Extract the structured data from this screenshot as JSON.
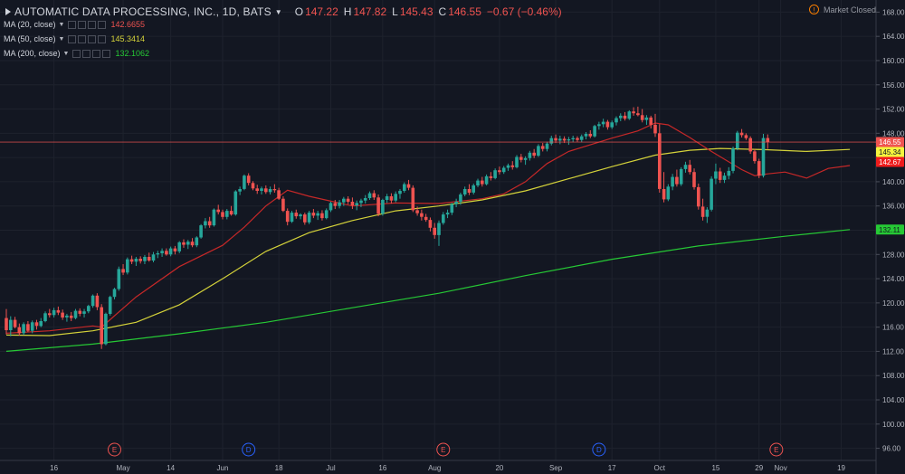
{
  "header": {
    "symbol": "AUTOMATIC DATA PROCESSING, INC., 1D, BATS",
    "open_label": "O",
    "open": "147.22",
    "high_label": "H",
    "high": "147.82",
    "low_label": "L",
    "low": "145.43",
    "close_label": "C",
    "close": "146.55",
    "change": "−0.67 (−0.46%)",
    "market_status": "Market Closed"
  },
  "studies": [
    {
      "label": "MA (20, close)",
      "value": "142.6655",
      "color": "#ef5350"
    },
    {
      "label": "MA (50, close)",
      "value": "145.3414",
      "color": "#d4d23a"
    },
    {
      "label": "MA (200, close)",
      "value": "132.1062",
      "color": "#26c935"
    }
  ],
  "colors": {
    "up": "#26a69a",
    "down": "#ef5350",
    "background": "#131722"
  },
  "chart_data": {
    "type": "candlestick",
    "ylim": [
      94,
      170
    ],
    "y_ticks": [
      "168.00",
      "164.00",
      "160.00",
      "156.00",
      "152.00",
      "148.00",
      "144.00",
      "140.00",
      "136.00",
      "132.00",
      "128.00",
      "124.00",
      "120.00",
      "116.00",
      "112.00",
      "108.00",
      "104.00",
      "100.00",
      "96.00"
    ],
    "x_ticks": [
      {
        "label": "16",
        "i": 11
      },
      {
        "label": "May",
        "i": 27
      },
      {
        "label": "14",
        "i": 38
      },
      {
        "label": "Jun",
        "i": 50
      },
      {
        "label": "18",
        "i": 63
      },
      {
        "label": "Jul",
        "i": 75
      },
      {
        "label": "16",
        "i": 87
      },
      {
        "label": "Aug",
        "i": 99
      },
      {
        "label": "20",
        "i": 114
      },
      {
        "label": "Sep",
        "i": 127
      },
      {
        "label": "17",
        "i": 140
      },
      {
        "label": "Oct",
        "i": 151
      },
      {
        "label": "15",
        "i": 164
      },
      {
        "label": "29",
        "i": 174
      },
      {
        "label": "Nov",
        "i": 179
      },
      {
        "label": "19",
        "i": 193
      }
    ],
    "event_markers": [
      {
        "label": "E",
        "i": 25,
        "color": "#ef5350"
      },
      {
        "label": "D",
        "i": 56,
        "color": "#2962ff"
      },
      {
        "label": "E",
        "i": 101,
        "color": "#ef5350"
      },
      {
        "label": "D",
        "i": 137,
        "color": "#2962ff"
      },
      {
        "label": "E",
        "i": 178,
        "color": "#ef5350"
      }
    ],
    "price_labels": [
      {
        "value": 146.55,
        "text": "146.55",
        "bg": "#ef5350",
        "fg": "#ffffff"
      },
      {
        "value": 145.34,
        "text": "145.34",
        "bg": "#f5f53d",
        "fg": "#131722"
      },
      {
        "value": 142.67,
        "text": "142.67",
        "bg": "#ef1c1c",
        "fg": "#ffffff"
      },
      {
        "value": 132.11,
        "text": "132.11",
        "bg": "#26c935",
        "fg": "#131722"
      }
    ],
    "last_price": 146.55,
    "candles": [
      [
        117.5,
        119.0,
        114.8,
        115.5
      ],
      [
        115.5,
        117.8,
        114.5,
        117.2
      ],
      [
        117.2,
        117.7,
        115.8,
        116.0
      ],
      [
        116.0,
        116.6,
        114.6,
        115.0
      ],
      [
        115.0,
        116.8,
        114.7,
        116.5
      ],
      [
        116.5,
        117.0,
        115.2,
        115.4
      ],
      [
        115.4,
        117.1,
        115.0,
        116.8
      ],
      [
        116.8,
        117.2,
        115.6,
        116.2
      ],
      [
        116.2,
        117.5,
        116.0,
        117.0
      ],
      [
        117.0,
        118.6,
        116.8,
        118.3
      ],
      [
        118.3,
        119.0,
        117.6,
        118.0
      ],
      [
        118.0,
        119.2,
        117.6,
        118.8
      ],
      [
        118.8,
        119.4,
        118.0,
        118.4
      ],
      [
        118.4,
        118.9,
        117.2,
        117.6
      ],
      [
        117.6,
        118.2,
        116.9,
        117.9
      ],
      [
        117.9,
        118.5,
        117.0,
        117.5
      ],
      [
        117.5,
        119.0,
        117.3,
        118.7
      ],
      [
        118.7,
        119.1,
        117.8,
        118.2
      ],
      [
        118.2,
        119.0,
        117.6,
        118.6
      ],
      [
        118.6,
        119.7,
        118.3,
        119.5
      ],
      [
        119.5,
        121.4,
        119.2,
        121.2
      ],
      [
        121.2,
        121.6,
        118.8,
        119.3
      ],
      [
        119.3,
        119.8,
        112.4,
        113.2
      ],
      [
        113.2,
        118.4,
        113.0,
        118.2
      ],
      [
        118.2,
        121.2,
        117.9,
        121.0
      ],
      [
        121.0,
        122.5,
        120.6,
        122.3
      ],
      [
        122.3,
        126.0,
        122.0,
        125.6
      ],
      [
        125.6,
        126.4,
        124.6,
        125.0
      ],
      [
        125.0,
        127.5,
        124.7,
        127.2
      ],
      [
        127.2,
        127.8,
        126.4,
        126.8
      ],
      [
        126.8,
        127.6,
        126.1,
        127.3
      ],
      [
        127.3,
        127.7,
        126.5,
        126.9
      ],
      [
        126.9,
        127.9,
        126.4,
        127.6
      ],
      [
        127.6,
        128.3,
        126.8,
        127.0
      ],
      [
        127.0,
        128.4,
        126.7,
        128.0
      ],
      [
        128.0,
        128.6,
        127.4,
        128.2
      ],
      [
        128.2,
        129.0,
        127.6,
        128.6
      ],
      [
        128.6,
        129.0,
        127.8,
        128.0
      ],
      [
        128.0,
        129.3,
        127.7,
        129.0
      ],
      [
        129.0,
        129.4,
        128.0,
        128.5
      ],
      [
        128.5,
        130.2,
        128.2,
        130.0
      ],
      [
        130.0,
        130.5,
        129.1,
        129.6
      ],
      [
        129.6,
        130.4,
        128.9,
        130.1
      ],
      [
        130.1,
        130.7,
        129.2,
        129.5
      ],
      [
        129.5,
        131.0,
        129.2,
        130.8
      ],
      [
        130.8,
        133.0,
        130.6,
        132.8
      ],
      [
        132.8,
        134.0,
        132.3,
        133.5
      ],
      [
        133.5,
        134.2,
        132.4,
        132.8
      ],
      [
        132.8,
        135.6,
        132.6,
        135.4
      ],
      [
        135.4,
        136.2,
        134.6,
        135.0
      ],
      [
        135.0,
        135.4,
        133.8,
        134.2
      ],
      [
        134.2,
        135.5,
        133.8,
        135.2
      ],
      [
        135.2,
        136.0,
        134.4,
        134.6
      ],
      [
        134.6,
        138.6,
        134.4,
        138.4
      ],
      [
        138.4,
        139.2,
        137.8,
        138.8
      ],
      [
        138.8,
        141.2,
        138.6,
        141.0
      ],
      [
        141.0,
        141.4,
        139.4,
        139.8
      ],
      [
        139.8,
        140.1,
        138.6,
        138.9
      ],
      [
        138.9,
        139.5,
        138.0,
        138.5
      ],
      [
        138.5,
        139.2,
        137.9,
        138.9
      ],
      [
        138.9,
        139.4,
        138.0,
        138.3
      ],
      [
        138.3,
        139.2,
        137.9,
        138.8
      ],
      [
        138.8,
        139.6,
        138.2,
        138.6
      ],
      [
        138.6,
        139.0,
        137.0,
        137.2
      ],
      [
        137.2,
        137.6,
        135.0,
        135.2
      ],
      [
        135.2,
        135.6,
        132.8,
        133.4
      ],
      [
        133.4,
        135.2,
        133.2,
        134.9
      ],
      [
        134.9,
        135.4,
        133.9,
        134.3
      ],
      [
        134.3,
        134.8,
        133.8,
        134.6
      ],
      [
        134.6,
        134.9,
        132.9,
        133.3
      ],
      [
        133.3,
        135.2,
        133.0,
        134.9
      ],
      [
        134.9,
        135.5,
        134.0,
        134.4
      ],
      [
        134.4,
        135.2,
        133.7,
        134.8
      ],
      [
        134.8,
        135.3,
        133.6,
        134.0
      ],
      [
        134.0,
        135.6,
        133.8,
        135.3
      ],
      [
        135.3,
        136.7,
        135.0,
        136.5
      ],
      [
        136.5,
        137.0,
        135.5,
        136.0
      ],
      [
        136.0,
        137.0,
        135.6,
        136.6
      ],
      [
        136.6,
        137.5,
        136.0,
        137.2
      ],
      [
        137.2,
        137.6,
        136.3,
        136.7
      ],
      [
        136.7,
        137.4,
        135.5,
        136.1
      ],
      [
        136.1,
        136.9,
        135.3,
        136.5
      ],
      [
        136.5,
        137.2,
        135.8,
        136.9
      ],
      [
        136.9,
        137.8,
        136.4,
        137.3
      ],
      [
        137.3,
        138.4,
        137.0,
        138.1
      ],
      [
        138.1,
        138.6,
        137.0,
        137.4
      ],
      [
        137.4,
        137.9,
        134.3,
        134.7
      ],
      [
        134.7,
        137.2,
        134.4,
        137.0
      ],
      [
        137.0,
        138.0,
        136.5,
        137.6
      ],
      [
        137.6,
        138.1,
        136.4,
        136.9
      ],
      [
        136.9,
        138.4,
        136.6,
        138.0
      ],
      [
        138.0,
        138.8,
        137.2,
        138.5
      ],
      [
        138.5,
        139.9,
        138.2,
        139.6
      ],
      [
        139.6,
        140.3,
        138.6,
        139.0
      ],
      [
        139.0,
        139.4,
        135.0,
        135.3
      ],
      [
        135.3,
        135.9,
        134.4,
        134.8
      ],
      [
        134.8,
        135.4,
        133.6,
        134.2
      ],
      [
        134.2,
        134.7,
        133.4,
        133.7
      ],
      [
        133.7,
        134.1,
        131.8,
        132.4
      ],
      [
        132.4,
        133.2,
        130.6,
        131.2
      ],
      [
        131.2,
        133.6,
        129.4,
        133.2
      ],
      [
        133.2,
        135.0,
        132.9,
        134.6
      ],
      [
        134.6,
        135.4,
        134.0,
        134.9
      ],
      [
        134.9,
        136.5,
        134.5,
        136.3
      ],
      [
        136.3,
        137.2,
        135.8,
        136.7
      ],
      [
        136.7,
        138.2,
        136.2,
        137.9
      ],
      [
        137.9,
        139.2,
        137.6,
        138.8
      ],
      [
        138.8,
        139.6,
        137.8,
        138.2
      ],
      [
        138.2,
        139.7,
        137.9,
        139.4
      ],
      [
        139.4,
        140.5,
        139.1,
        140.2
      ],
      [
        140.2,
        140.8,
        139.2,
        139.6
      ],
      [
        139.6,
        141.2,
        139.4,
        140.9
      ],
      [
        140.9,
        141.6,
        140.2,
        140.6
      ],
      [
        140.6,
        142.2,
        140.4,
        141.9
      ],
      [
        141.9,
        142.5,
        141.2,
        141.6
      ],
      [
        141.6,
        142.6,
        141.3,
        142.3
      ],
      [
        142.3,
        143.0,
        141.8,
        142.7
      ],
      [
        142.7,
        143.4,
        142.0,
        142.4
      ],
      [
        142.4,
        144.4,
        142.2,
        144.1
      ],
      [
        144.1,
        144.6,
        143.2,
        143.6
      ],
      [
        143.6,
        144.2,
        142.8,
        143.9
      ],
      [
        143.9,
        145.1,
        143.5,
        144.8
      ],
      [
        144.8,
        145.4,
        143.9,
        144.3
      ],
      [
        144.3,
        146.2,
        144.1,
        145.9
      ],
      [
        145.9,
        146.4,
        145.0,
        145.4
      ],
      [
        145.4,
        146.6,
        145.0,
        146.3
      ],
      [
        146.3,
        147.6,
        146.0,
        147.2
      ],
      [
        147.2,
        147.8,
        146.4,
        146.8
      ],
      [
        146.8,
        147.6,
        146.2,
        147.1
      ],
      [
        147.1,
        147.5,
        146.4,
        146.8
      ],
      [
        146.8,
        147.4,
        146.1,
        147.0
      ],
      [
        147.0,
        147.6,
        146.5,
        147.2
      ],
      [
        147.2,
        147.5,
        146.6,
        146.9
      ],
      [
        146.9,
        147.8,
        146.5,
        147.5
      ],
      [
        147.5,
        148.2,
        147.0,
        147.9
      ],
      [
        147.9,
        148.5,
        147.2,
        147.5
      ],
      [
        147.5,
        149.4,
        147.3,
        149.2
      ],
      [
        149.2,
        149.9,
        148.6,
        149.5
      ],
      [
        149.5,
        150.4,
        149.0,
        149.9
      ],
      [
        149.9,
        150.2,
        148.6,
        149.0
      ],
      [
        149.0,
        150.1,
        148.7,
        149.8
      ],
      [
        149.8,
        150.8,
        149.3,
        150.5
      ],
      [
        150.5,
        151.3,
        150.0,
        150.9
      ],
      [
        150.9,
        151.5,
        150.1,
        150.4
      ],
      [
        150.4,
        151.8,
        150.2,
        151.6
      ],
      [
        151.6,
        152.3,
        150.9,
        151.3
      ],
      [
        151.3,
        152.4,
        150.8,
        151.0
      ],
      [
        151.0,
        152.0,
        149.8,
        150.2
      ],
      [
        150.2,
        151.0,
        149.4,
        150.6
      ],
      [
        150.6,
        150.9,
        148.8,
        149.4
      ],
      [
        149.4,
        151.2,
        147.4,
        148.0
      ],
      [
        148.0,
        149.5,
        138.2,
        138.8
      ],
      [
        138.8,
        141.6,
        136.6,
        137.1
      ],
      [
        137.1,
        139.6,
        136.8,
        139.2
      ],
      [
        139.2,
        141.3,
        138.6,
        140.8
      ],
      [
        140.8,
        142.0,
        139.2,
        139.6
      ],
      [
        139.6,
        142.4,
        139.3,
        142.1
      ],
      [
        142.1,
        143.3,
        141.5,
        142.8
      ],
      [
        142.8,
        143.6,
        141.2,
        141.6
      ],
      [
        141.6,
        142.2,
        138.7,
        139.1
      ],
      [
        139.1,
        139.7,
        135.4,
        135.9
      ],
      [
        135.9,
        137.2,
        133.6,
        134.2
      ],
      [
        134.2,
        135.8,
        133.2,
        135.4
      ],
      [
        135.4,
        140.9,
        135.1,
        140.5
      ],
      [
        140.5,
        143.0,
        139.6,
        141.7
      ],
      [
        141.7,
        142.3,
        139.8,
        140.3
      ],
      [
        140.3,
        141.5,
        139.8,
        141.0
      ],
      [
        141.0,
        142.4,
        140.4,
        141.8
      ],
      [
        141.8,
        145.8,
        141.4,
        145.5
      ],
      [
        145.5,
        148.4,
        145.2,
        148.1
      ],
      [
        148.1,
        148.7,
        147.3,
        147.7
      ],
      [
        147.7,
        148.0,
        146.9,
        147.2
      ],
      [
        147.2,
        147.5,
        144.6,
        145.0
      ],
      [
        145.0,
        145.4,
        143.0,
        143.4
      ],
      [
        143.4,
        143.8,
        140.6,
        141.0
      ],
      [
        141.0,
        147.9,
        140.7,
        147.22
      ],
      [
        147.22,
        147.82,
        145.43,
        146.55
      ]
    ],
    "ma20": [
      [
        0,
        115.0
      ],
      [
        10,
        115.4
      ],
      [
        20,
        116.2
      ],
      [
        22,
        116.0
      ],
      [
        30,
        121.0
      ],
      [
        40,
        126.0
      ],
      [
        50,
        129.5
      ],
      [
        55,
        132.5
      ],
      [
        60,
        136.0
      ],
      [
        65,
        138.6
      ],
      [
        70,
        137.6
      ],
      [
        80,
        136.0
      ],
      [
        90,
        136.5
      ],
      [
        100,
        136.4
      ],
      [
        110,
        137.2
      ],
      [
        115,
        138.0
      ],
      [
        120,
        140.0
      ],
      [
        125,
        143.0
      ],
      [
        130,
        145.0
      ],
      [
        140,
        147.2
      ],
      [
        146,
        148.4
      ],
      [
        150,
        149.7
      ],
      [
        153,
        149.4
      ],
      [
        158,
        147.3
      ],
      [
        163,
        145.0
      ],
      [
        170,
        142.0
      ],
      [
        173,
        141.0
      ],
      [
        176,
        141.3
      ],
      [
        180,
        141.6
      ],
      [
        185,
        140.6
      ],
      [
        190,
        142.2
      ],
      [
        195,
        142.67
      ]
    ],
    "ma50": [
      [
        0,
        114.7
      ],
      [
        10,
        114.6
      ],
      [
        20,
        115.4
      ],
      [
        30,
        116.8
      ],
      [
        40,
        119.7
      ],
      [
        50,
        124.0
      ],
      [
        60,
        128.5
      ],
      [
        70,
        131.6
      ],
      [
        80,
        133.6
      ],
      [
        90,
        135.2
      ],
      [
        100,
        136.0
      ],
      [
        110,
        137.0
      ],
      [
        120,
        138.5
      ],
      [
        130,
        140.5
      ],
      [
        140,
        142.5
      ],
      [
        150,
        144.4
      ],
      [
        158,
        145.2
      ],
      [
        165,
        145.5
      ],
      [
        175,
        145.3
      ],
      [
        185,
        145.0
      ],
      [
        195,
        145.34
      ]
    ],
    "ma200": [
      [
        0,
        112.0
      ],
      [
        20,
        113.2
      ],
      [
        40,
        114.9
      ],
      [
        60,
        116.8
      ],
      [
        80,
        119.2
      ],
      [
        100,
        121.6
      ],
      [
        120,
        124.5
      ],
      [
        140,
        127.2
      ],
      [
        160,
        129.4
      ],
      [
        180,
        131.0
      ],
      [
        195,
        132.11
      ]
    ]
  }
}
